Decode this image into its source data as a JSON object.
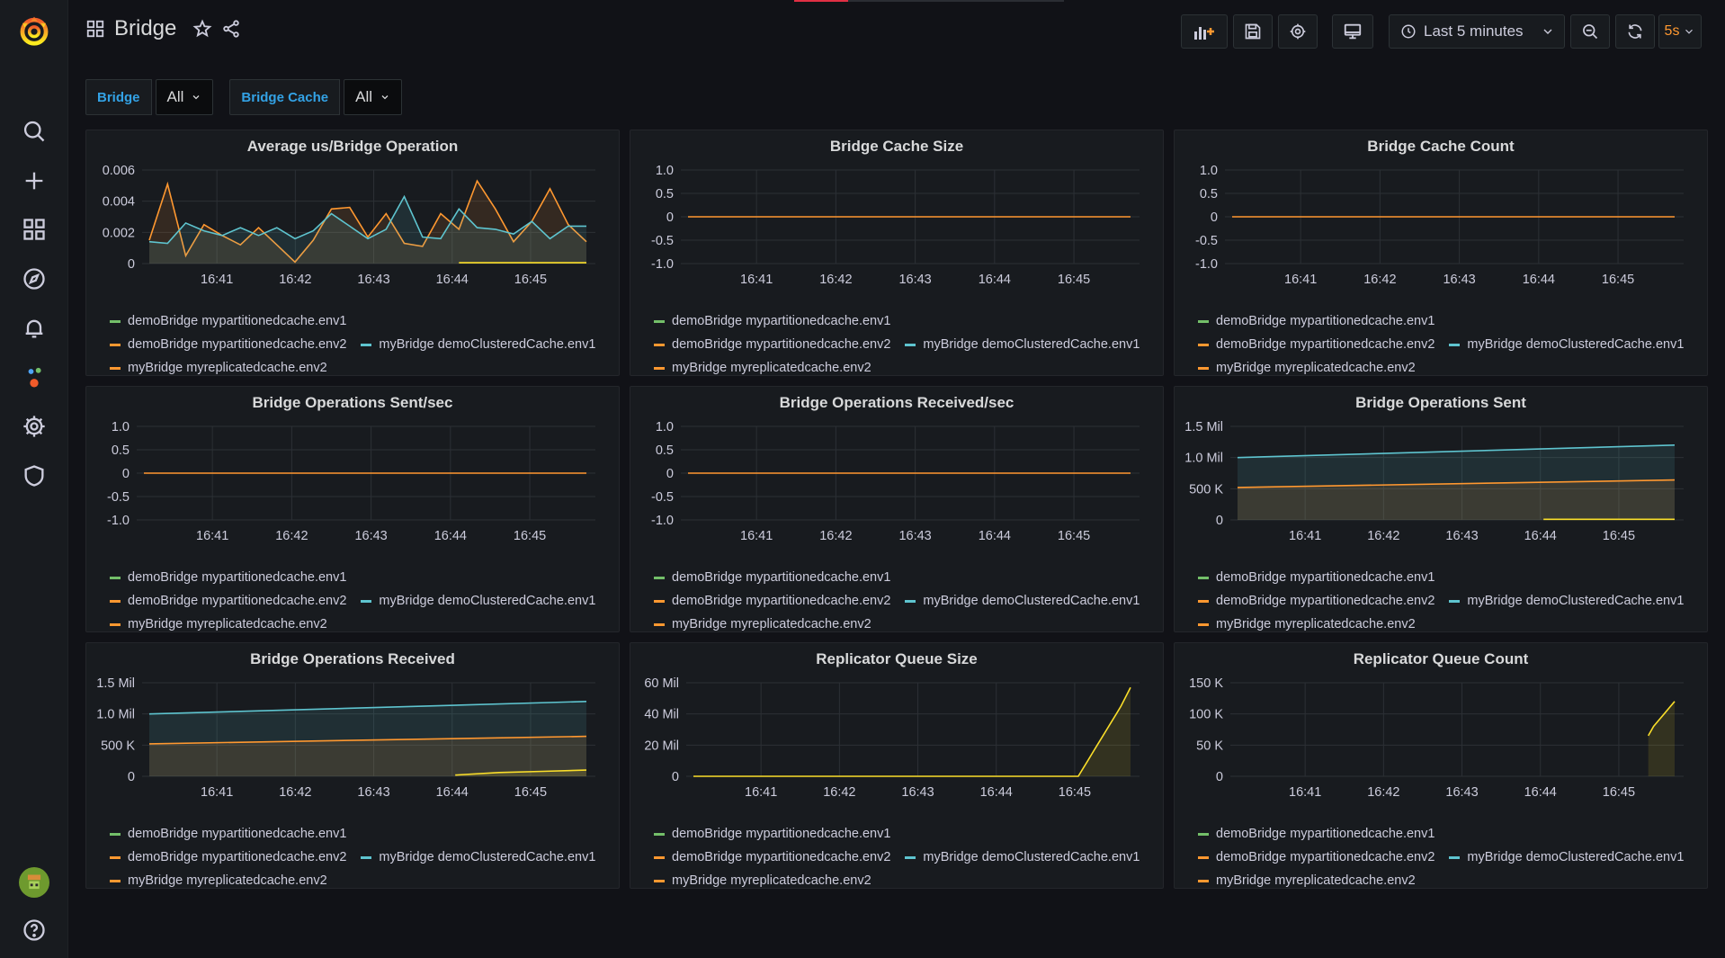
{
  "dashboard": {
    "title": "Bridge",
    "time_range": "Last 5 minutes",
    "refresh": "5s"
  },
  "variables": [
    {
      "label": "Bridge",
      "value": "All"
    },
    {
      "label": "Bridge Cache",
      "value": "All"
    }
  ],
  "colors": {
    "env1": "#73bf69",
    "env2": "#ff9830",
    "cluster": "#5ec4cf",
    "replicated": "#fade2a",
    "grid": "#2c3035",
    "axis_text": "#ccccdc"
  },
  "legend": [
    {
      "name": "demoBridge mypartitionedcache.env1",
      "color": "#73bf69"
    },
    {
      "name": "demoBridge mypartitionedcache.env2",
      "color": "#ff9830"
    },
    {
      "name": "myBridge demoClusteredCache.env1",
      "color": "#5ec4cf"
    },
    {
      "name": "myBridge myreplicatedcache.env2",
      "color": "#ff9830"
    }
  ],
  "chart_data": [
    {
      "title": "Average us/Bridge Operation",
      "type": "line",
      "x_ticks": [
        "16:41",
        "16:42",
        "16:43",
        "16:44",
        "16:45"
      ],
      "y_ticks": [
        "0.006",
        "0.004",
        "0.002",
        "0"
      ],
      "ylim": [
        0,
        0.006
      ],
      "series": [
        {
          "name": "demoBridge mypartitionedcache.env2",
          "color": "#ff9830",
          "values": [
            0.0015,
            0.0051,
            0.0005,
            0.0025,
            0.0018,
            0.0012,
            0.0023,
            0.0012,
            0.0001,
            0.0015,
            0.0035,
            0.0036,
            0.0017,
            0.0032,
            0.0013,
            0.0011,
            0.0032,
            0.0022,
            0.0053,
            0.0035,
            0.0014,
            0.0027,
            0.0048,
            0.0025,
            0.0014
          ]
        },
        {
          "name": "myBridge demoClusteredCache.env1",
          "color": "#5ec4cf",
          "values": [
            0.0014,
            0.0013,
            0.0026,
            0.0021,
            0.0018,
            0.0023,
            0.0018,
            0.0023,
            0.0016,
            0.0021,
            0.0032,
            0.0024,
            0.0016,
            0.0022,
            0.0043,
            0.0017,
            0.0016,
            0.0035,
            0.0023,
            0.0022,
            0.0019,
            0.0027,
            0.0016,
            0.0024,
            0.0024
          ]
        },
        {
          "name": "myBridge myreplicatedcache.env2",
          "color": "#fade2a",
          "values": [
            null,
            null,
            null,
            null,
            null,
            null,
            null,
            null,
            null,
            null,
            null,
            null,
            null,
            null,
            null,
            null,
            null,
            5e-05,
            5e-05,
            5e-05,
            5e-05,
            5e-05,
            5e-05,
            5e-05,
            5e-05
          ]
        }
      ]
    },
    {
      "title": "Bridge Cache Size",
      "type": "line",
      "x_ticks": [
        "16:41",
        "16:42",
        "16:43",
        "16:44",
        "16:45"
      ],
      "y_ticks": [
        "1.0",
        "0.5",
        "0",
        "-0.5",
        "-1.0"
      ],
      "ylim": [
        -1,
        1
      ],
      "series": [
        {
          "name": "demoBridge mypartitionedcache.env2",
          "color": "#ff9830",
          "values": [
            0,
            0
          ]
        }
      ]
    },
    {
      "title": "Bridge Cache Count",
      "type": "line",
      "x_ticks": [
        "16:41",
        "16:42",
        "16:43",
        "16:44",
        "16:45"
      ],
      "y_ticks": [
        "1.0",
        "0.5",
        "0",
        "-0.5",
        "-1.0"
      ],
      "ylim": [
        -1,
        1
      ],
      "series": [
        {
          "name": "demoBridge mypartitionedcache.env2",
          "color": "#ff9830",
          "values": [
            0,
            0
          ]
        }
      ]
    },
    {
      "title": "Bridge Operations Sent/sec",
      "type": "line",
      "x_ticks": [
        "16:41",
        "16:42",
        "16:43",
        "16:44",
        "16:45"
      ],
      "y_ticks": [
        "1.0",
        "0.5",
        "0",
        "-0.5",
        "-1.0"
      ],
      "ylim": [
        -1,
        1
      ],
      "series": [
        {
          "name": "demoBridge mypartitionedcache.env2",
          "color": "#ff9830",
          "values": [
            0,
            0
          ]
        }
      ]
    },
    {
      "title": "Bridge Operations Received/sec",
      "type": "line",
      "x_ticks": [
        "16:41",
        "16:42",
        "16:43",
        "16:44",
        "16:45"
      ],
      "y_ticks": [
        "1.0",
        "0.5",
        "0",
        "-0.5",
        "-1.0"
      ],
      "ylim": [
        -1,
        1
      ],
      "series": [
        {
          "name": "demoBridge mypartitionedcache.env2",
          "color": "#ff9830",
          "values": [
            0,
            0
          ]
        }
      ]
    },
    {
      "title": "Bridge Operations Sent",
      "type": "area",
      "x_ticks": [
        "16:41",
        "16:42",
        "16:43",
        "16:44",
        "16:45"
      ],
      "y_ticks": [
        "1.5 Mil",
        "1.0 Mil",
        "500 K",
        "0"
      ],
      "ylim": [
        0,
        1500000
      ],
      "series": [
        {
          "name": "myBridge demoClusteredCache.env1",
          "color": "#5ec4cf",
          "values": [
            1000000,
            1200000
          ]
        },
        {
          "name": "demoBridge mypartitionedcache.env2",
          "color": "#ff9830",
          "values": [
            520000,
            640000
          ]
        },
        {
          "name": "myBridge myreplicatedcache.env2",
          "color": "#fade2a",
          "values": [
            null,
            null,
            null,
            null,
            null,
            null,
            null,
            10000,
            10000,
            10000,
            10000
          ]
        }
      ]
    },
    {
      "title": "Bridge Operations Received",
      "type": "area",
      "x_ticks": [
        "16:41",
        "16:42",
        "16:43",
        "16:44",
        "16:45"
      ],
      "y_ticks": [
        "1.5 Mil",
        "1.0 Mil",
        "500 K",
        "0"
      ],
      "ylim": [
        0,
        1500000
      ],
      "series": [
        {
          "name": "myBridge demoClusteredCache.env1",
          "color": "#5ec4cf",
          "values": [
            1000000,
            1200000
          ]
        },
        {
          "name": "demoBridge mypartitionedcache.env2",
          "color": "#ff9830",
          "values": [
            520000,
            640000
          ]
        },
        {
          "name": "myBridge myreplicatedcache.env2",
          "color": "#fade2a",
          "values": [
            null,
            null,
            null,
            null,
            null,
            null,
            null,
            20000,
            60000,
            80000,
            100000
          ]
        }
      ]
    },
    {
      "title": "Replicator Queue Size",
      "type": "area",
      "x_ticks": [
        "16:41",
        "16:42",
        "16:43",
        "16:44",
        "16:45"
      ],
      "y_ticks": [
        "60 Mil",
        "40 Mil",
        "20 Mil",
        "0"
      ],
      "ylim": [
        0,
        60000000
      ],
      "series": [
        {
          "name": "myBridge myreplicatedcache.env2",
          "color": "#fade2a",
          "values": [
            0,
            0,
            0,
            0,
            0,
            0,
            0,
            0,
            0,
            0,
            0,
            0,
            0,
            0,
            0,
            0,
            0,
            0,
            0,
            0,
            0,
            0,
            0,
            0,
            0,
            0,
            0,
            0,
            0,
            0,
            0,
            0,
            0,
            0,
            0,
            0,
            0,
            0,
            0,
            0,
            0,
            0,
            0,
            0,
            0,
            0,
            0,
            0,
            0,
            0,
            0,
            0,
            0,
            0,
            0,
            0,
            0,
            0,
            0,
            0,
            0,
            0,
            0,
            0,
            0,
            0,
            0,
            0,
            0,
            0,
            0,
            0,
            0,
            0,
            0,
            0,
            0,
            0,
            0,
            0,
            0,
            0,
            5000000,
            10000000,
            15000000,
            20000000,
            25000000,
            30000000,
            35000000,
            40000000,
            45000000,
            51000000,
            57000000
          ]
        }
      ]
    },
    {
      "title": "Replicator Queue Count",
      "type": "area",
      "x_ticks": [
        "16:41",
        "16:42",
        "16:43",
        "16:44",
        "16:45"
      ],
      "y_ticks": [
        "150 K",
        "100 K",
        "50 K",
        "0"
      ],
      "ylim": [
        0,
        150000
      ],
      "series": [
        {
          "name": "myBridge myreplicatedcache.env2",
          "color": "#fade2a",
          "values": [
            null,
            null,
            null,
            null,
            null,
            null,
            null,
            null,
            null,
            null,
            null,
            null,
            null,
            null,
            null,
            null,
            null,
            null,
            null,
            null,
            null,
            null,
            null,
            null,
            null,
            null,
            null,
            null,
            null,
            null,
            null,
            null,
            null,
            null,
            null,
            null,
            null,
            null,
            null,
            null,
            null,
            null,
            null,
            null,
            null,
            null,
            null,
            null,
            null,
            null,
            null,
            null,
            null,
            null,
            null,
            null,
            null,
            null,
            null,
            null,
            null,
            null,
            null,
            null,
            null,
            null,
            null,
            null,
            null,
            null,
            null,
            null,
            null,
            null,
            null,
            null,
            null,
            null,
            65000,
            80000,
            90000,
            100000,
            110000,
            120000
          ]
        }
      ]
    }
  ]
}
